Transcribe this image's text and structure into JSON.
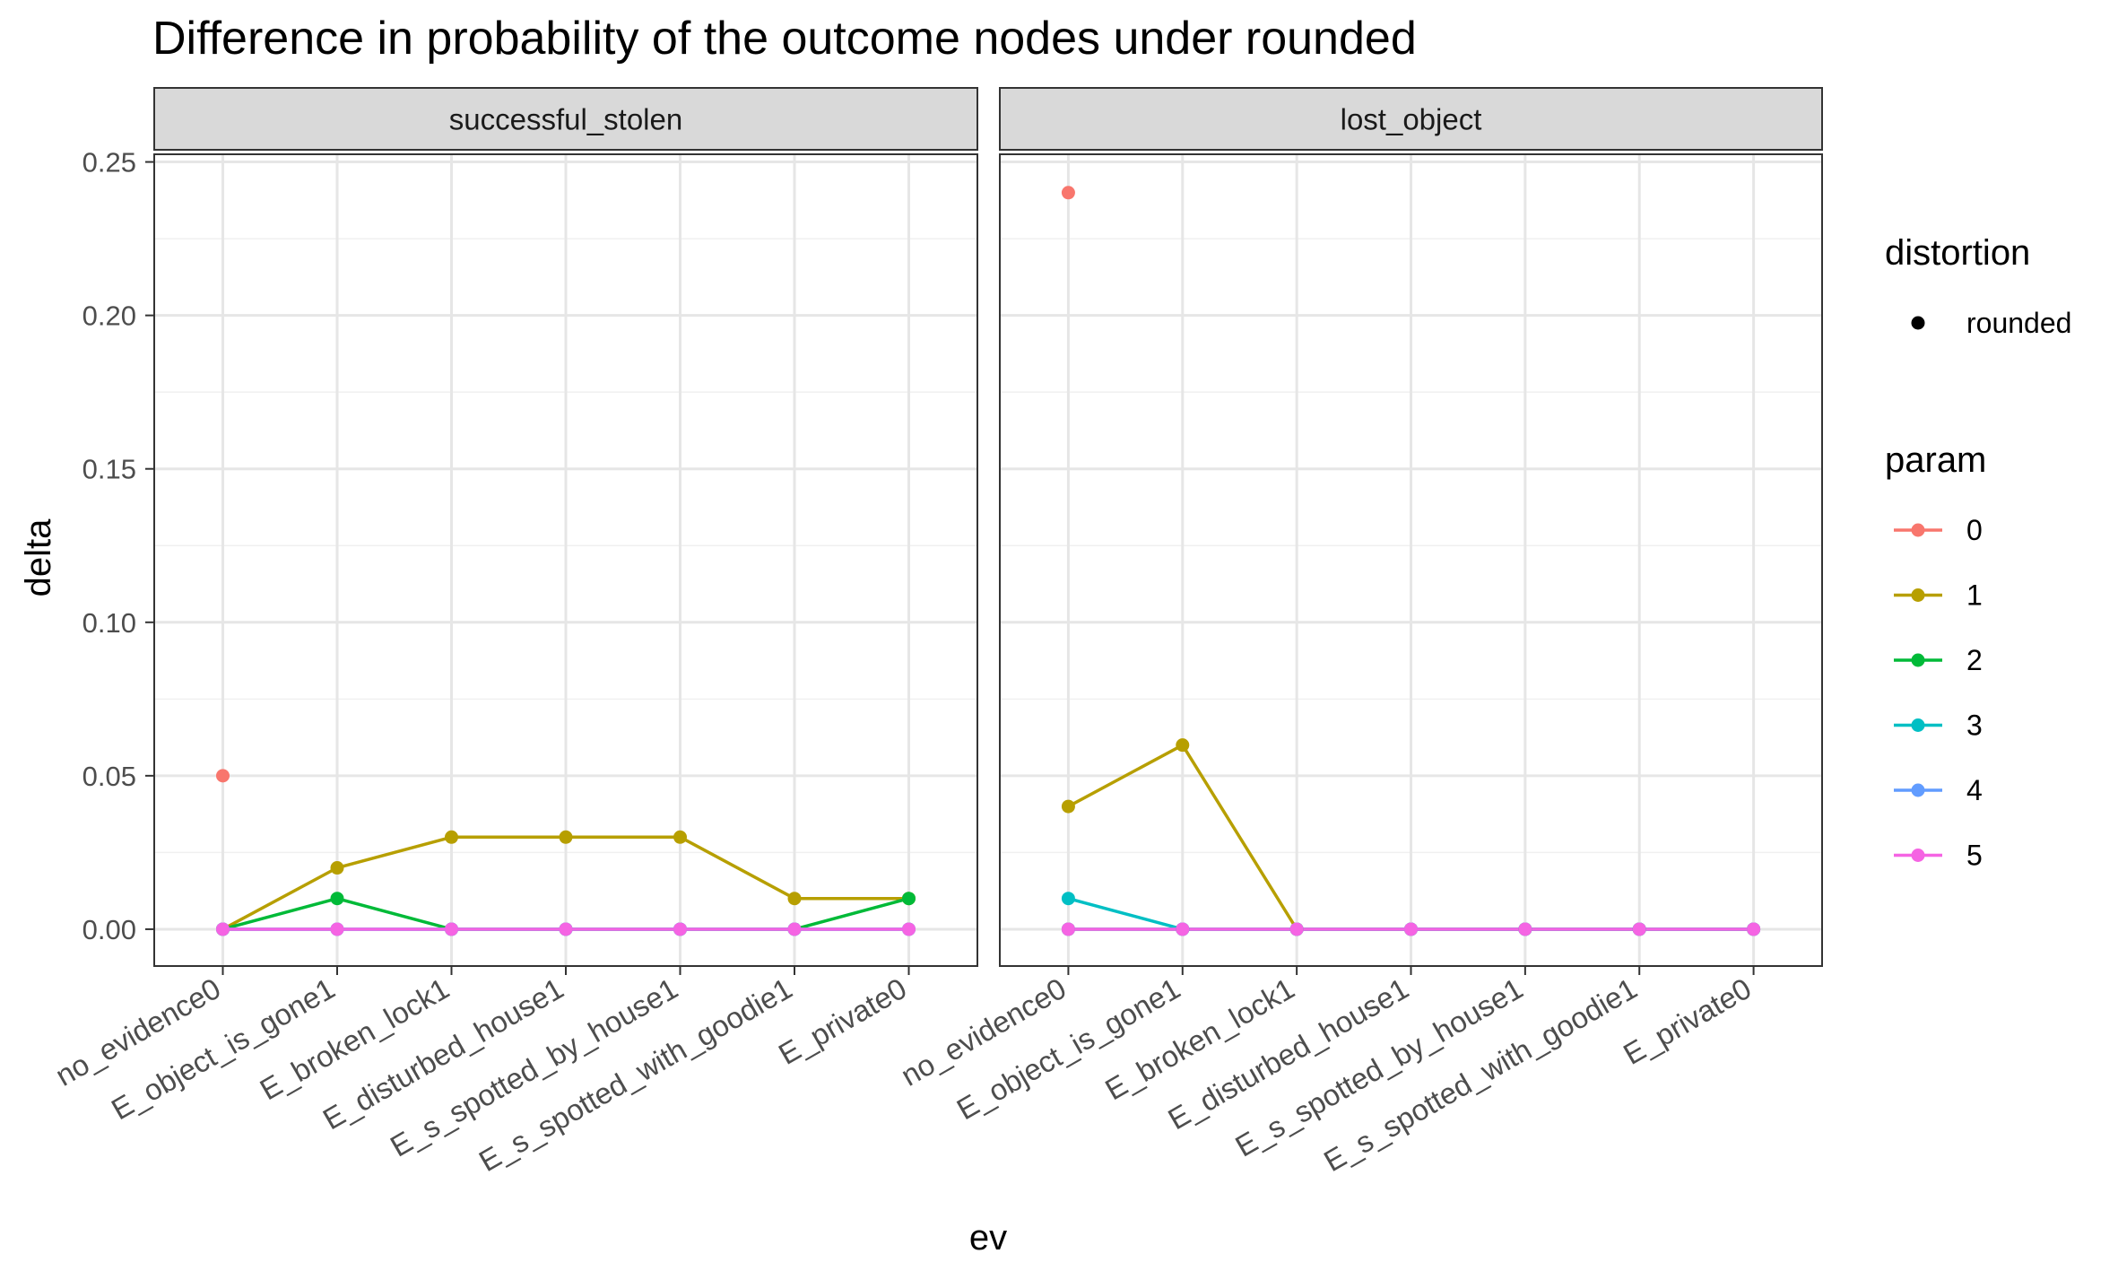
{
  "chart_data": {
    "type": "line",
    "title": "Difference in probability of the outcome nodes under rounded",
    "xlabel": "ev",
    "ylabel": "delta",
    "ylim": [
      -0.012,
      0.2525
    ],
    "yticks": [
      "0.00",
      "0.05",
      "0.10",
      "0.15",
      "0.20",
      "0.25"
    ],
    "ytick_values": [
      0,
      0.05,
      0.1,
      0.15,
      0.2,
      0.25
    ],
    "categories": [
      "no_evidence0",
      "E_object_is_gone1",
      "E_broken_lock1",
      "E_disturbed_house1",
      "E_s_spotted_by_house1",
      "E_s_spotted_with_goodie1",
      "E_private0"
    ],
    "grid": true,
    "legend_position": "right",
    "legend": {
      "distortion_title": "distortion",
      "distortion_items": [
        "rounded"
      ],
      "param_title": "param",
      "param_items": [
        "0",
        "1",
        "2",
        "3",
        "4",
        "5"
      ]
    },
    "colors": {
      "0": "#F8766D",
      "1": "#B79F00",
      "2": "#00BA38",
      "3": "#00BFC4",
      "4": "#619CFF",
      "5": "#F564E3"
    },
    "panels": [
      {
        "strip": "successful_stolen",
        "series": [
          {
            "param": "0",
            "values": [
              0.05,
              null,
              null,
              null,
              null,
              null,
              null
            ]
          },
          {
            "param": "1",
            "values": [
              0.0,
              0.02,
              0.03,
              0.03,
              0.03,
              0.01,
              0.01
            ]
          },
          {
            "param": "2",
            "values": [
              0.0,
              0.01,
              0.0,
              0.0,
              0.0,
              0.0,
              0.01
            ]
          },
          {
            "param": "3",
            "values": [
              0.0,
              0.0,
              0.0,
              0.0,
              0.0,
              0.0,
              0.0
            ]
          },
          {
            "param": "4",
            "values": [
              0.0,
              0.0,
              0.0,
              0.0,
              0.0,
              0.0,
              0.0
            ]
          },
          {
            "param": "5",
            "values": [
              0.0,
              0.0,
              0.0,
              0.0,
              0.0,
              0.0,
              0.0
            ]
          }
        ]
      },
      {
        "strip": "lost_object",
        "series": [
          {
            "param": "0",
            "values": [
              0.24,
              null,
              null,
              null,
              null,
              null,
              null
            ]
          },
          {
            "param": "1",
            "values": [
              0.04,
              0.06,
              0.0,
              0.0,
              0.0,
              0.0,
              0.0
            ]
          },
          {
            "param": "2",
            "values": [
              0.0,
              0.0,
              0.0,
              0.0,
              0.0,
              0.0,
              0.0
            ]
          },
          {
            "param": "3",
            "values": [
              0.01,
              0.0,
              0.0,
              0.0,
              0.0,
              0.0,
              0.0
            ]
          },
          {
            "param": "4",
            "values": [
              0.0,
              0.0,
              0.0,
              0.0,
              0.0,
              0.0,
              0.0
            ]
          },
          {
            "param": "5",
            "values": [
              0.0,
              0.0,
              0.0,
              0.0,
              0.0,
              0.0,
              0.0
            ]
          }
        ]
      }
    ]
  }
}
